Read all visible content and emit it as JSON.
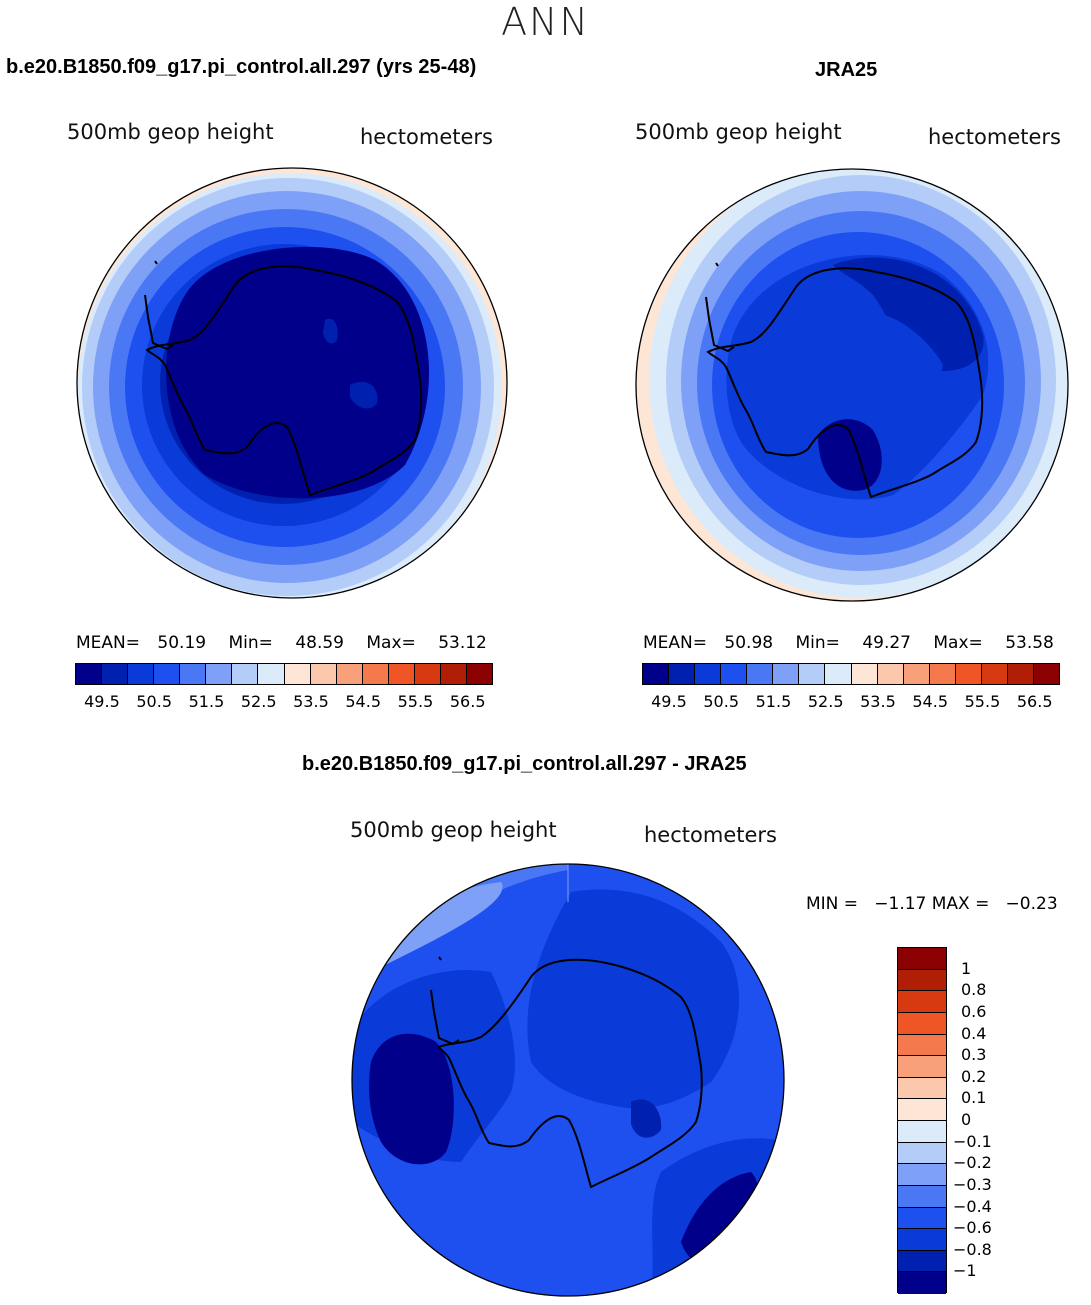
{
  "title": "ANN",
  "panels": [
    {
      "case_title": "b.e20.B1850.f09_g17.pi_control.all.297 (yrs 25-48)",
      "variable": "500mb geop height",
      "units": "hectometers",
      "mean_label": "MEAN=",
      "mean": "50.19",
      "min_label": "Min=",
      "min": "48.59",
      "max_label": "Max=",
      "max": "53.12"
    },
    {
      "case_title": "JRA25",
      "variable": "500mb geop height",
      "units": "hectometers",
      "mean_label": "MEAN=",
      "mean": "50.98",
      "min_label": "Min=",
      "min": "49.27",
      "max_label": "Max=",
      "max": "53.58"
    }
  ],
  "diff_panel": {
    "case_title": "b.e20.B1850.f09_g17.pi_control.all.297 - JRA25",
    "variable": "500mb geop height",
    "units": "hectometers",
    "minmax_text": "MIN =   −1.17 MAX =   −0.23"
  },
  "abs_colorbar": {
    "colors": [
      "#00008b",
      "#0021b0",
      "#0a3ad8",
      "#1e50f0",
      "#4a78f5",
      "#7ea0f7",
      "#b4ccf8",
      "#dcebfa",
      "#fde6d6",
      "#fbc8ad",
      "#f7a07a",
      "#f47a4e",
      "#ef5525",
      "#d73a10",
      "#b01e05",
      "#8b0000"
    ],
    "ticks": [
      "49.5",
      "50.5",
      "51.5",
      "52.5",
      "53.5",
      "54.5",
      "55.5",
      "56.5"
    ]
  },
  "diff_colorbar": {
    "colors": [
      "#8b0000",
      "#b01e05",
      "#d73a10",
      "#ef5525",
      "#f47a4e",
      "#f7a07a",
      "#fbc8ad",
      "#fde6d6",
      "#dcebfa",
      "#b4ccf8",
      "#7ea0f7",
      "#4a78f5",
      "#1e50f0",
      "#0a3ad8",
      "#0021b0",
      "#00008b"
    ],
    "labels": [
      "1",
      "0.8",
      "0.6",
      "0.4",
      "0.3",
      "0.2",
      "0.1",
      "0",
      "−0.1",
      "−0.2",
      "−0.3",
      "−0.4",
      "−0.6",
      "−0.8",
      "−1"
    ]
  }
}
